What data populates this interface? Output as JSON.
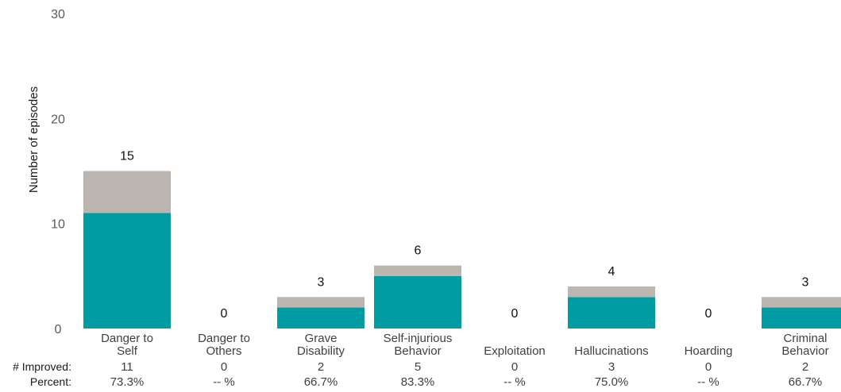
{
  "chart_data": {
    "type": "bar",
    "stacked": true,
    "ylabel": "Number of episodes",
    "ylim": [
      0,
      30
    ],
    "yticks": [
      0,
      10,
      20,
      30
    ],
    "categories": [
      [
        "Danger to",
        "Self"
      ],
      [
        "Danger to",
        "Others"
      ],
      [
        "Grave",
        "Disability"
      ],
      [
        "Self-injurious",
        "Behavior"
      ],
      [
        "Exploitation"
      ],
      [
        "Hallucinations"
      ],
      [
        "Hoarding"
      ],
      [
        "Criminal",
        "Behavior"
      ]
    ],
    "series": [
      {
        "values": [
          11,
          0,
          2,
          5,
          0,
          3,
          0,
          2
        ],
        "color": "#009ca1"
      },
      {
        "values": [
          4,
          0,
          1,
          1,
          0,
          1,
          0,
          1
        ],
        "color": "#bcb5b0"
      }
    ],
    "totals": [
      "15",
      "0",
      "3",
      "6",
      "0",
      "4",
      "0",
      "3"
    ],
    "table_rows": [
      {
        "label": "# Improved:",
        "values": [
          "11",
          "0",
          "2",
          "5",
          "0",
          "3",
          "0",
          "2"
        ]
      },
      {
        "label": "Percent:",
        "values": [
          "73.3%",
          "-- %",
          "66.7%",
          "83.3%",
          "-- %",
          "75.0%",
          "-- %",
          "66.7%"
        ]
      }
    ]
  }
}
